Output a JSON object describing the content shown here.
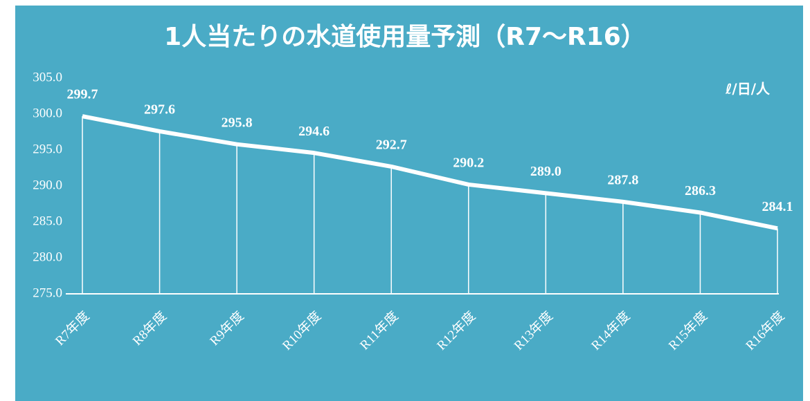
{
  "chart_data": {
    "type": "line",
    "title": "1人当たりの水道使用量予測（R7～R16）",
    "unit_label": "ℓ/日/人",
    "categories": [
      "R7年度",
      "R8年度",
      "R9年度",
      "R10年度",
      "R11年度",
      "R12年度",
      "R13年度",
      "R14年度",
      "R15年度",
      "R16年度"
    ],
    "values": [
      299.7,
      297.6,
      295.8,
      294.6,
      292.7,
      290.2,
      289.0,
      287.8,
      286.3,
      284.1
    ],
    "value_labels": [
      "299.7",
      "297.6",
      "295.8",
      "294.6",
      "292.7",
      "290.2",
      "289.0",
      "287.8",
      "286.3",
      "284.1"
    ],
    "color": "#ffffff",
    "background": "#4aabc6",
    "drop_lines": true,
    "ylim": [
      275,
      305
    ],
    "yticks": [
      {
        "value": 275,
        "label": "275.0"
      },
      {
        "value": 280,
        "label": "280.0"
      },
      {
        "value": 285,
        "label": "285.0"
      },
      {
        "value": 290,
        "label": "290.0"
      },
      {
        "value": 295,
        "label": "295.0"
      },
      {
        "value": 300,
        "label": "300.0"
      },
      {
        "value": 305,
        "label": "305.0"
      }
    ]
  }
}
